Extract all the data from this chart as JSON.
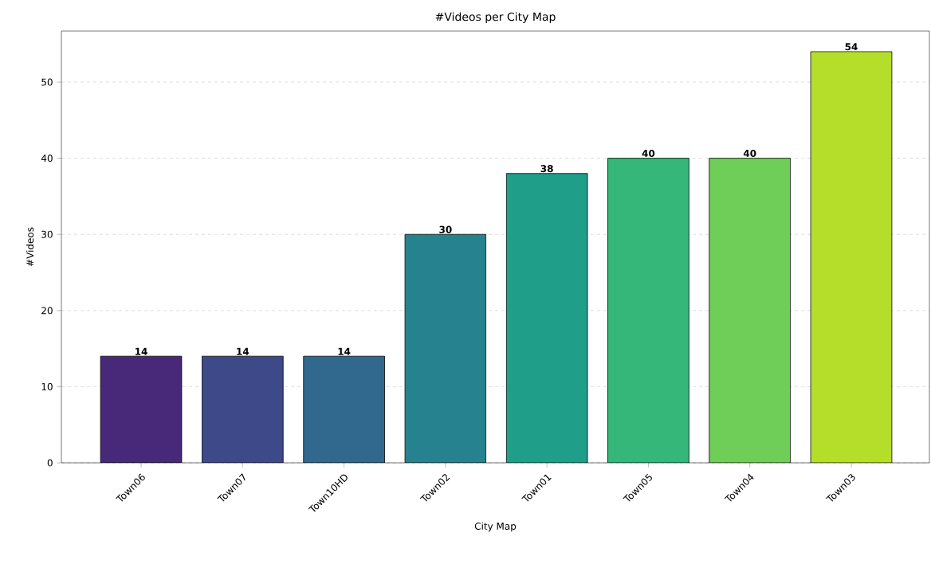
{
  "chart_data": {
    "type": "bar",
    "title": "#Videos per City Map",
    "xlabel": "City Map",
    "ylabel": "#Videos",
    "categories": [
      "Town06",
      "Town07",
      "Town10HD",
      "Town02",
      "Town01",
      "Town05",
      "Town04",
      "Town03"
    ],
    "values": [
      14,
      14,
      14,
      30,
      38,
      40,
      40,
      54
    ],
    "colors": [
      "#482878",
      "#3e4989",
      "#31688e",
      "#26828e",
      "#1f9e89",
      "#35b779",
      "#6ece58",
      "#b5de2b"
    ],
    "ylim": [
      0,
      56.7
    ],
    "yticks": [
      0,
      10,
      20,
      30,
      40,
      50
    ],
    "grid": "y",
    "data_labels": true
  }
}
